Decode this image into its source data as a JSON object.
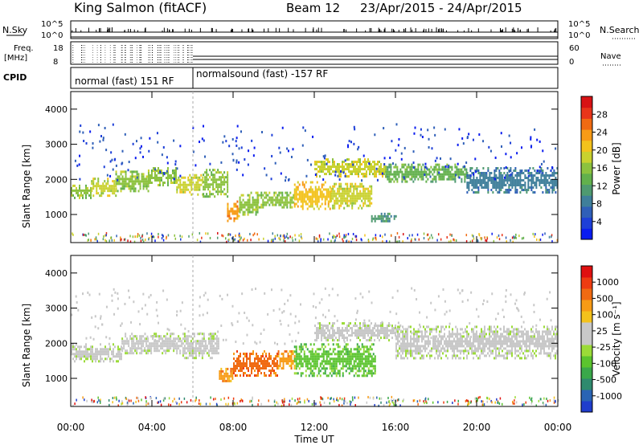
{
  "header": {
    "station": "King Salmon (fitACF)",
    "beam": "Beam 12",
    "dates": "23/Apr/2015 - 24/Apr/2015"
  },
  "params": {
    "nsky_label": "N.Sky",
    "nsky_ticks": [
      "10^5",
      "10^0"
    ],
    "nsearch_label": "N.Search",
    "nsearch_ticks": [
      "10^5",
      "10^0"
    ],
    "freq_label": "Freq.",
    "freq_unit": "[MHz]",
    "freq_ticks": [
      "18",
      "8"
    ],
    "nave_label": "Nave",
    "nave_ticks": [
      "60",
      "0"
    ],
    "cpid_label": "CPID",
    "cpid_segments": [
      {
        "text": "normal (fast) 151 RF",
        "start_h": 0,
        "end_h": 6
      },
      {
        "text": "normalsound (fast) -157 RF",
        "start_h": 6,
        "end_h": 24
      }
    ]
  },
  "colorbars": {
    "power": {
      "label": "Power [dB]",
      "ticks": [
        "28",
        "24",
        "20",
        "16",
        "12",
        "8",
        "4"
      ],
      "colors": [
        "#0a1cf0",
        "#1d3fd8",
        "#2f5fb8",
        "#3f7f9a",
        "#4f9a70",
        "#62b04c",
        "#8cc23e",
        "#c9d12e",
        "#f3c21c",
        "#f79b16",
        "#f06a12",
        "#e8351a",
        "#d81214"
      ]
    },
    "velocity": {
      "label": "Velocity [m s⁻¹]",
      "ticks": [
        "1000",
        "500",
        "100",
        "25",
        "-25",
        "-100",
        "-500",
        "-1000"
      ],
      "colors": [
        "#1f3dcc",
        "#2a64b4",
        "#2f8a6e",
        "#3aa84a",
        "#5bc42e",
        "#9bdb38",
        "#c8c8c8",
        "#c8c8c8",
        "#f3c21c",
        "#f79b16",
        "#f06a12",
        "#ee3c12",
        "#e01010"
      ]
    }
  },
  "chart_data": [
    {
      "type": "heatmap",
      "name": "Power",
      "ylabel": "Slant Range [km]",
      "yticks": [
        "4000",
        "3000",
        "2000",
        "1000"
      ],
      "ylim": [
        200,
        4500
      ],
      "xlim": [
        0,
        24
      ],
      "bands": [
        {
          "x0": 0.0,
          "x1": 1.0,
          "r0": 1500,
          "r1": 1850,
          "level": 6
        },
        {
          "x0": 1.0,
          "x1": 2.2,
          "r0": 1550,
          "r1": 2050,
          "level": 7
        },
        {
          "x0": 2.2,
          "x1": 3.8,
          "r0": 1700,
          "r1": 2250,
          "level": 6
        },
        {
          "x0": 3.8,
          "x1": 5.2,
          "r0": 1850,
          "r1": 2350,
          "level": 6
        },
        {
          "x0": 5.2,
          "x1": 6.5,
          "r0": 1600,
          "r1": 2150,
          "level": 7
        },
        {
          "x0": 6.5,
          "x1": 7.7,
          "r0": 1500,
          "r1": 2300,
          "level": 6
        },
        {
          "x0": 7.7,
          "x1": 8.3,
          "r0": 850,
          "r1": 1400,
          "level": 9
        },
        {
          "x0": 8.3,
          "x1": 9.2,
          "r0": 1000,
          "r1": 1650,
          "level": 6
        },
        {
          "x0": 9.2,
          "x1": 11.0,
          "r0": 1200,
          "r1": 1650,
          "level": 6
        },
        {
          "x0": 11.0,
          "x1": 12.8,
          "r0": 1150,
          "r1": 1950,
          "level": 8
        },
        {
          "x0": 12.8,
          "x1": 14.8,
          "r0": 1200,
          "r1": 1900,
          "level": 7
        },
        {
          "x0": 14.8,
          "x1": 16.0,
          "r0": 800,
          "r1": 1050,
          "level": 4
        },
        {
          "x0": 12.0,
          "x1": 15.5,
          "r0": 2100,
          "r1": 2600,
          "level": 7
        },
        {
          "x0": 15.5,
          "x1": 19.5,
          "r0": 1950,
          "r1": 2450,
          "level": 5
        },
        {
          "x0": 19.5,
          "x1": 24.0,
          "r0": 1600,
          "r1": 2350,
          "level": 3
        }
      ]
    },
    {
      "type": "heatmap",
      "name": "Velocity",
      "ylabel": "Slant Range [km]",
      "yticks": [
        "4000",
        "3000",
        "2000",
        "1000"
      ],
      "ylim": [
        200,
        4500
      ],
      "xlim": [
        0,
        24
      ],
      "bands": [
        {
          "x0": 0.0,
          "x1": 2.5,
          "r0": 1500,
          "r1": 2000,
          "level": 6
        },
        {
          "x0": 2.5,
          "x1": 5.5,
          "r0": 1700,
          "r1": 2300,
          "level": 6
        },
        {
          "x0": 5.5,
          "x1": 7.3,
          "r0": 1600,
          "r1": 2300,
          "level": 6
        },
        {
          "x0": 7.3,
          "x1": 8.0,
          "r0": 900,
          "r1": 1300,
          "level": 9
        },
        {
          "x0": 8.0,
          "x1": 10.2,
          "r0": 1100,
          "r1": 1800,
          "level": 10
        },
        {
          "x0": 10.2,
          "x1": 11.0,
          "r0": 1300,
          "r1": 1800,
          "level": 9
        },
        {
          "x0": 11.0,
          "x1": 15.0,
          "r0": 1100,
          "r1": 2000,
          "level": 4
        },
        {
          "x0": 12.0,
          "x1": 16.0,
          "r0": 2100,
          "r1": 2600,
          "level": 6
        },
        {
          "x0": 16.0,
          "x1": 24.0,
          "r0": 1600,
          "r1": 2500,
          "level": 6
        }
      ]
    }
  ],
  "x_axis": {
    "ticks": [
      "00:00",
      "04:00",
      "08:00",
      "12:00",
      "16:00",
      "20:00",
      "00:00"
    ],
    "label": "Time UT"
  }
}
